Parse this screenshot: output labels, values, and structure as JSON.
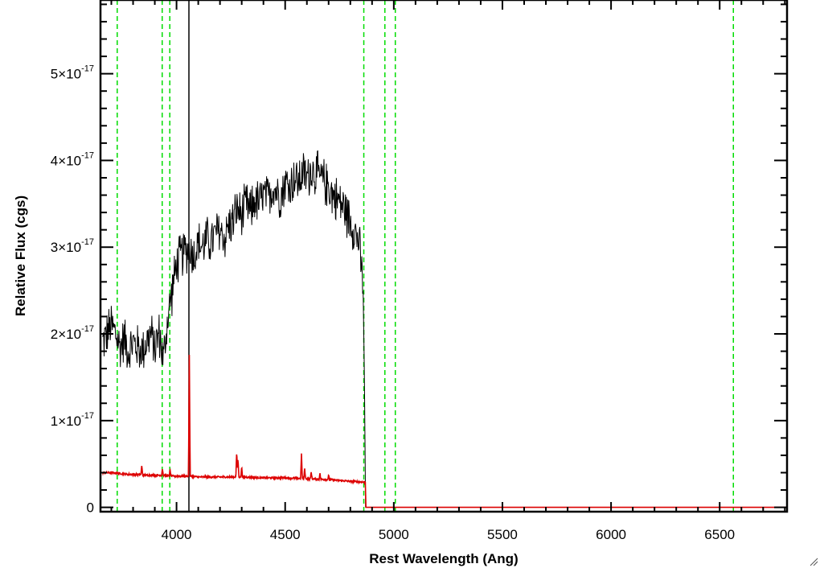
{
  "chart_data": {
    "type": "line",
    "xlabel": "Rest Wavelength (Ang)",
    "ylabel": "Relative Flux (cgs)",
    "xlim": [
      3650,
      6810
    ],
    "ylim": [
      -5e-19,
      5.85e-17
    ],
    "x_ticks": [
      {
        "value": 4000,
        "label": "4000"
      },
      {
        "value": 4500,
        "label": "4500"
      },
      {
        "value": 5000,
        "label": "5000"
      },
      {
        "value": 5500,
        "label": "5500"
      },
      {
        "value": 6000,
        "label": "6000"
      },
      {
        "value": 6500,
        "label": "6500"
      }
    ],
    "y_ticks": [
      {
        "value": 0,
        "mant": "0",
        "exp": ""
      },
      {
        "value": 1e-17,
        "mant": "1×10",
        "exp": "-17"
      },
      {
        "value": 2e-17,
        "mant": "2×10",
        "exp": "-17"
      },
      {
        "value": 3e-17,
        "mant": "3×10",
        "exp": "-17"
      },
      {
        "value": 4e-17,
        "mant": "4×10",
        "exp": "-17"
      },
      {
        "value": 5e-17,
        "mant": "5×10",
        "exp": "-17"
      }
    ],
    "x_minor_step": 100,
    "y_minor_step": 2e-18,
    "vertical_lines": [
      3727,
      3934,
      3969,
      4862,
      4959,
      5007,
      6563
    ],
    "vertical_line_color": "#00dd00",
    "spike_line": {
      "x": 4057,
      "y_range": [
        -5e-19,
        5.85e-17
      ],
      "color": "#000000"
    },
    "series": [
      {
        "color": "#000000",
        "x": [
          3660,
          3680,
          3700,
          3720,
          3740,
          3760,
          3780,
          3800,
          3820,
          3840,
          3860,
          3880,
          3900,
          3920,
          3940,
          3960,
          3980,
          4000,
          4020,
          4040,
          4060,
          4080,
          4100,
          4120,
          4140,
          4160,
          4180,
          4200,
          4220,
          4240,
          4260,
          4280,
          4300,
          4320,
          4340,
          4360,
          4380,
          4400,
          4420,
          4440,
          4460,
          4480,
          4500,
          4520,
          4540,
          4560,
          4580,
          4600,
          4620,
          4640,
          4660,
          4680,
          4700,
          4720,
          4740,
          4760,
          4780,
          4800,
          4820,
          4840,
          4860,
          4866,
          4870
        ],
        "y": [
          1.9e-17,
          2e-17,
          2.1e-17,
          2e-17,
          1.85e-17,
          1.95e-17,
          1.8e-17,
          1.9e-17,
          1.85e-17,
          1.8e-17,
          1.9e-17,
          2e-17,
          1.85e-17,
          2e-17,
          1.7e-17,
          2.2e-17,
          2.5e-17,
          2.8e-17,
          2.9e-17,
          2.95e-17,
          3e-17,
          2.9e-17,
          3.05e-17,
          3e-17,
          3.1e-17,
          3.05e-17,
          3.15e-17,
          3.2e-17,
          3.1e-17,
          3.25e-17,
          3.3e-17,
          3.45e-17,
          3.35e-17,
          3.5e-17,
          3.4e-17,
          3.55e-17,
          3.5e-17,
          3.6e-17,
          3.55e-17,
          3.7e-17,
          3.65e-17,
          3.6e-17,
          3.75e-17,
          3.7e-17,
          3.8e-17,
          3.75e-17,
          3.85e-17,
          3.8e-17,
          3.9e-17,
          3.85e-17,
          3.8e-17,
          3.75e-17,
          3.7e-17,
          3.6e-17,
          3.55e-17,
          3.5e-17,
          3.4e-17,
          3.3e-17,
          3.2e-17,
          3.05e-17,
          2.5e-17,
          1.2e-17,
          0
        ],
        "noise": 2.2e-18
      },
      {
        "color": "#dd0000",
        "x": [
          3660,
          3700,
          3740,
          3780,
          3820,
          3860,
          3900,
          3940,
          3980,
          4020,
          4060,
          4100,
          4200,
          4300,
          4400,
          4500,
          4600,
          4700,
          4800,
          4866,
          4869,
          4872,
          4900,
          5000,
          5500,
          6000,
          6500,
          6810
        ],
        "y": [
          4e-18,
          4e-18,
          3.9e-18,
          3.8e-18,
          3.8e-18,
          3.7e-18,
          3.7e-18,
          3.7e-18,
          3.6e-18,
          3.6e-18,
          3.6e-18,
          3.5e-18,
          3.5e-18,
          3.5e-18,
          3.4e-18,
          3.4e-18,
          3.3e-18,
          3.2e-18,
          3e-18,
          2.9e-18,
          2.9e-18,
          0,
          0,
          0,
          0,
          0,
          0,
          0
        ],
        "peaks": [
          {
            "x": 3840,
            "h": 1e-18
          },
          {
            "x": 3935,
            "h": 8e-19
          },
          {
            "x": 3970,
            "h": 7e-19
          },
          {
            "x": 4059,
            "h": 1.4e-17
          },
          {
            "x": 4277,
            "h": 3e-18
          },
          {
            "x": 4283,
            "h": 2.2e-18
          },
          {
            "x": 4300,
            "h": 1.2e-18
          },
          {
            "x": 4575,
            "h": 2.8e-18
          },
          {
            "x": 4590,
            "h": 1.2e-18
          },
          {
            "x": 4620,
            "h": 8e-19
          },
          {
            "x": 4660,
            "h": 7e-19
          },
          {
            "x": 4700,
            "h": 5e-19
          }
        ]
      }
    ]
  }
}
